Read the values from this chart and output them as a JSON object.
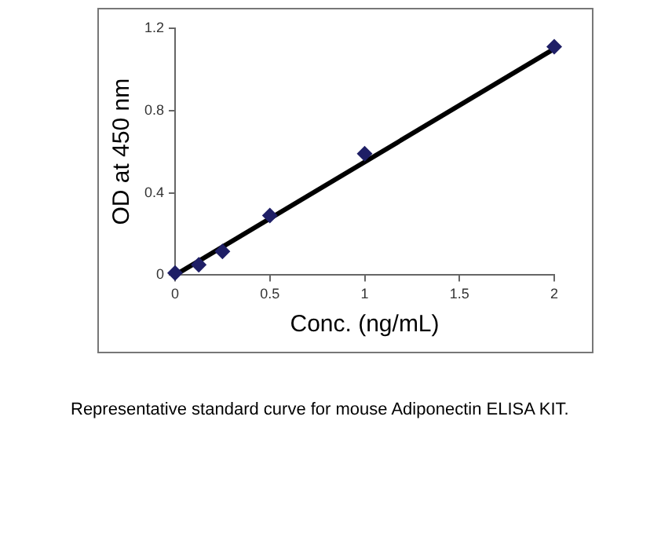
{
  "chart_data": {
    "type": "scatter",
    "xlabel": "Conc. (ng/mL)",
    "ylabel": "OD at 450 nm",
    "xlim": [
      0,
      2
    ],
    "xticks": [
      0,
      0.5,
      1,
      1.5,
      2
    ],
    "ylim": [
      0,
      1.2
    ],
    "yticks": [
      0,
      0.4,
      0.8,
      1.2
    ],
    "grid": false,
    "legend": false,
    "marker": "diamond",
    "series": [
      {
        "color": "#1f1f66",
        "x": [
          0,
          0.125,
          0.25,
          0.5,
          1,
          2
        ],
        "values": [
          0.01,
          0.05,
          0.115,
          0.29,
          0.59,
          1.11
        ]
      },
      {
        "type": "line",
        "color": "#000000",
        "marker": "none",
        "x": [
          0,
          2
        ],
        "values": [
          0,
          1.1
        ]
      }
    ],
    "annotations": [
      "Representative standard curve for mouse Adiponectin ELISA KIT."
    ]
  }
}
